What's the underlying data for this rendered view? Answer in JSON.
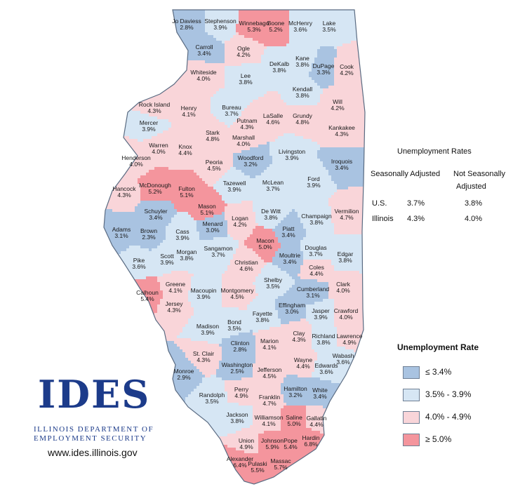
{
  "colors": {
    "low": "#a9c3e1",
    "mid_low": "#d6e6f4",
    "mid_high": "#f9d5d9",
    "high": "#f4959d",
    "border": "#5a6b82"
  },
  "counties": [
    {
      "name": "Jo Daviess",
      "rate": "2.8%",
      "level": "low"
    },
    {
      "name": "Stephenson",
      "rate": "3.9%",
      "level": "mid_low"
    },
    {
      "name": "Winnebago",
      "rate": "5.3%",
      "level": "high"
    },
    {
      "name": "Boone",
      "rate": "5.2%",
      "level": "high"
    },
    {
      "name": "McHenry",
      "rate": "3.6%",
      "level": "mid_low"
    },
    {
      "name": "Lake",
      "rate": "3.5%",
      "level": "mid_low"
    },
    {
      "name": "Carroll",
      "rate": "3.4%",
      "level": "low"
    },
    {
      "name": "Ogle",
      "rate": "4.2%",
      "level": "mid_high"
    },
    {
      "name": "DeKalb",
      "rate": "3.8%",
      "level": "mid_low"
    },
    {
      "name": "Kane",
      "rate": "3.8%",
      "level": "mid_low"
    },
    {
      "name": "DuPage",
      "rate": "3.3%",
      "level": "low"
    },
    {
      "name": "Cook",
      "rate": "4.2%",
      "level": "mid_high"
    },
    {
      "name": "Whiteside",
      "rate": "4.0%",
      "level": "mid_high"
    },
    {
      "name": "Lee",
      "rate": "3.8%",
      "level": "mid_low"
    },
    {
      "name": "Kendall",
      "rate": "3.8%",
      "level": "mid_low"
    },
    {
      "name": "Will",
      "rate": "4.2%",
      "level": "mid_high"
    },
    {
      "name": "Rock Island",
      "rate": "4.3%",
      "level": "mid_high"
    },
    {
      "name": "Henry",
      "rate": "4.1%",
      "level": "mid_high"
    },
    {
      "name": "Bureau",
      "rate": "3.7%",
      "level": "mid_low"
    },
    {
      "name": "Putnam",
      "rate": "4.3%",
      "level": "mid_high"
    },
    {
      "name": "LaSalle",
      "rate": "4.6%",
      "level": "mid_high"
    },
    {
      "name": "Grundy",
      "rate": "4.8%",
      "level": "mid_high"
    },
    {
      "name": "Kankakee",
      "rate": "4.3%",
      "level": "mid_high"
    },
    {
      "name": "Mercer",
      "rate": "3.9%",
      "level": "mid_low"
    },
    {
      "name": "Stark",
      "rate": "4.8%",
      "level": "mid_high"
    },
    {
      "name": "Marshall",
      "rate": "4.0%",
      "level": "mid_high"
    },
    {
      "name": "Warren",
      "rate": "4.0%",
      "level": "mid_high"
    },
    {
      "name": "Knox",
      "rate": "4.4%",
      "level": "mid_high"
    },
    {
      "name": "Henderson",
      "rate": "4.0%",
      "level": "mid_high"
    },
    {
      "name": "Peoria",
      "rate": "4.5%",
      "level": "mid_high"
    },
    {
      "name": "Woodford",
      "rate": "3.2%",
      "level": "low"
    },
    {
      "name": "Livingston",
      "rate": "3.9%",
      "level": "mid_low"
    },
    {
      "name": "Iroquois",
      "rate": "3.4%",
      "level": "low"
    },
    {
      "name": "Hancock",
      "rate": "4.3%",
      "level": "mid_high"
    },
    {
      "name": "McDonough",
      "rate": "5.2%",
      "level": "high"
    },
    {
      "name": "Fulton",
      "rate": "5.1%",
      "level": "high"
    },
    {
      "name": "Tazewell",
      "rate": "3.9%",
      "level": "mid_low"
    },
    {
      "name": "McLean",
      "rate": "3.7%",
      "level": "mid_low"
    },
    {
      "name": "Ford",
      "rate": "3.9%",
      "level": "mid_low"
    },
    {
      "name": "Schuyler",
      "rate": "3.4%",
      "level": "low"
    },
    {
      "name": "Mason",
      "rate": "5.1%",
      "level": "high"
    },
    {
      "name": "Logan",
      "rate": "4.2%",
      "level": "mid_high"
    },
    {
      "name": "De Witt",
      "rate": "3.8%",
      "level": "mid_low"
    },
    {
      "name": "Champaign",
      "rate": "3.8%",
      "level": "mid_low"
    },
    {
      "name": "Vermilion",
      "rate": "4.7%",
      "level": "mid_high"
    },
    {
      "name": "Adams",
      "rate": "3.1%",
      "level": "low"
    },
    {
      "name": "Brown",
      "rate": "2.3%",
      "level": "low"
    },
    {
      "name": "Cass",
      "rate": "3.9%",
      "level": "mid_low"
    },
    {
      "name": "Menard",
      "rate": "3.0%",
      "level": "low"
    },
    {
      "name": "Piatt",
      "rate": "3.4%",
      "level": "low"
    },
    {
      "name": "Macon",
      "rate": "5.0%",
      "level": "high"
    },
    {
      "name": "Sangamon",
      "rate": "3.7%",
      "level": "mid_low"
    },
    {
      "name": "Morgan",
      "rate": "3.8%",
      "level": "mid_low"
    },
    {
      "name": "Scott",
      "rate": "3.9%",
      "level": "mid_low"
    },
    {
      "name": "Pike",
      "rate": "3.6%",
      "level": "mid_low"
    },
    {
      "name": "Douglas",
      "rate": "3.7%",
      "level": "mid_low"
    },
    {
      "name": "Edgar",
      "rate": "3.8%",
      "level": "mid_low"
    },
    {
      "name": "Moultrie",
      "rate": "3.4%",
      "level": "low"
    },
    {
      "name": "Christian",
      "rate": "4.6%",
      "level": "mid_high"
    },
    {
      "name": "Coles",
      "rate": "4.4%",
      "level": "mid_high"
    },
    {
      "name": "Shelby",
      "rate": "3.5%",
      "level": "mid_low"
    },
    {
      "name": "Clark",
      "rate": "4.0%",
      "level": "mid_high"
    },
    {
      "name": "Calhoun",
      "rate": "5.4%",
      "level": "high"
    },
    {
      "name": "Greene",
      "rate": "4.1%",
      "level": "mid_high"
    },
    {
      "name": "Macoupin",
      "rate": "3.9%",
      "level": "mid_low"
    },
    {
      "name": "Montgomery",
      "rate": "4.5%",
      "level": "mid_high"
    },
    {
      "name": "Cumberland",
      "rate": "3.1%",
      "level": "low"
    },
    {
      "name": "Jersey",
      "rate": "4.3%",
      "level": "mid_high"
    },
    {
      "name": "Effingham",
      "rate": "3.0%",
      "level": "low"
    },
    {
      "name": "Jasper",
      "rate": "3.9%",
      "level": "mid_low"
    },
    {
      "name": "Crawford",
      "rate": "4.0%",
      "level": "mid_high"
    },
    {
      "name": "Fayette",
      "rate": "3.8%",
      "level": "mid_low"
    },
    {
      "name": "Bond",
      "rate": "3.5%",
      "level": "mid_low"
    },
    {
      "name": "Madison",
      "rate": "3.9%",
      "level": "mid_low"
    },
    {
      "name": "Clay",
      "rate": "4.3%",
      "level": "mid_high"
    },
    {
      "name": "Richland",
      "rate": "3.8%",
      "level": "mid_low"
    },
    {
      "name": "Lawrence",
      "rate": "4.9%",
      "level": "mid_high"
    },
    {
      "name": "Marion",
      "rate": "4.1%",
      "level": "mid_high"
    },
    {
      "name": "Clinton",
      "rate": "2.8%",
      "level": "low"
    },
    {
      "name": "St. Clair",
      "rate": "4.3%",
      "level": "mid_high"
    },
    {
      "name": "Wabash",
      "rate": "3.6%",
      "level": "mid_low"
    },
    {
      "name": "Wayne",
      "rate": "4.4%",
      "level": "mid_high"
    },
    {
      "name": "Edwards",
      "rate": "3.6%",
      "level": "mid_low"
    },
    {
      "name": "Washington",
      "rate": "2.5%",
      "level": "low"
    },
    {
      "name": "Jefferson",
      "rate": "4.5%",
      "level": "mid_high"
    },
    {
      "name": "Monroe",
      "rate": "2.9%",
      "level": "low"
    },
    {
      "name": "Randolph",
      "rate": "3.5%",
      "level": "mid_low"
    },
    {
      "name": "Perry",
      "rate": "4.9%",
      "level": "mid_high"
    },
    {
      "name": "Franklin",
      "rate": "4.7%",
      "level": "mid_high"
    },
    {
      "name": "Hamilton",
      "rate": "3.2%",
      "level": "low"
    },
    {
      "name": "White",
      "rate": "3.4%",
      "level": "low"
    },
    {
      "name": "Jackson",
      "rate": "3.8%",
      "level": "mid_low"
    },
    {
      "name": "Williamson",
      "rate": "4.1%",
      "level": "mid_high"
    },
    {
      "name": "Saline",
      "rate": "5.0%",
      "level": "high"
    },
    {
      "name": "Gallatin",
      "rate": "4.4%",
      "level": "mid_high"
    },
    {
      "name": "Union",
      "rate": "4.9%",
      "level": "mid_high"
    },
    {
      "name": "Johnson",
      "rate": "5.9%",
      "level": "high"
    },
    {
      "name": "Pope",
      "rate": "5.4%",
      "level": "high"
    },
    {
      "name": "Hardin",
      "rate": "6.8%",
      "level": "high"
    },
    {
      "name": "Alexander",
      "rate": "6.4%",
      "level": "high"
    },
    {
      "name": "Pulaski",
      "rate": "5.5%",
      "level": "high"
    },
    {
      "name": "Massac",
      "rate": "5.7%",
      "level": "high"
    }
  ],
  "rates_table": {
    "title": "Unemployment Rates",
    "col1": "Seasonally Adjusted",
    "col2_line1": "Not Seasonally",
    "col2_line2": "Adjusted",
    "rows": [
      {
        "label": "U.S.",
        "sa": "3.7%",
        "nsa": "3.8%"
      },
      {
        "label": "Illinois",
        "sa": "4.3%",
        "nsa": "4.0%"
      }
    ]
  },
  "legend": {
    "title": "Unemployment Rate",
    "items": [
      {
        "label": "≤ 3.4%",
        "level": "low"
      },
      {
        "label": "3.5% - 3.9%",
        "level": "mid_low"
      },
      {
        "label": "4.0% - 4.9%",
        "level": "mid_high"
      },
      {
        "label": "≥ 5.0%",
        "level": "high"
      }
    ]
  },
  "logo": {
    "letters": "IDES",
    "org_line1": "ILLINOIS DEPARTMENT OF",
    "org_line2": "EMPLOYMENT SECURITY"
  },
  "url": "www.ides.illinois.gov"
}
